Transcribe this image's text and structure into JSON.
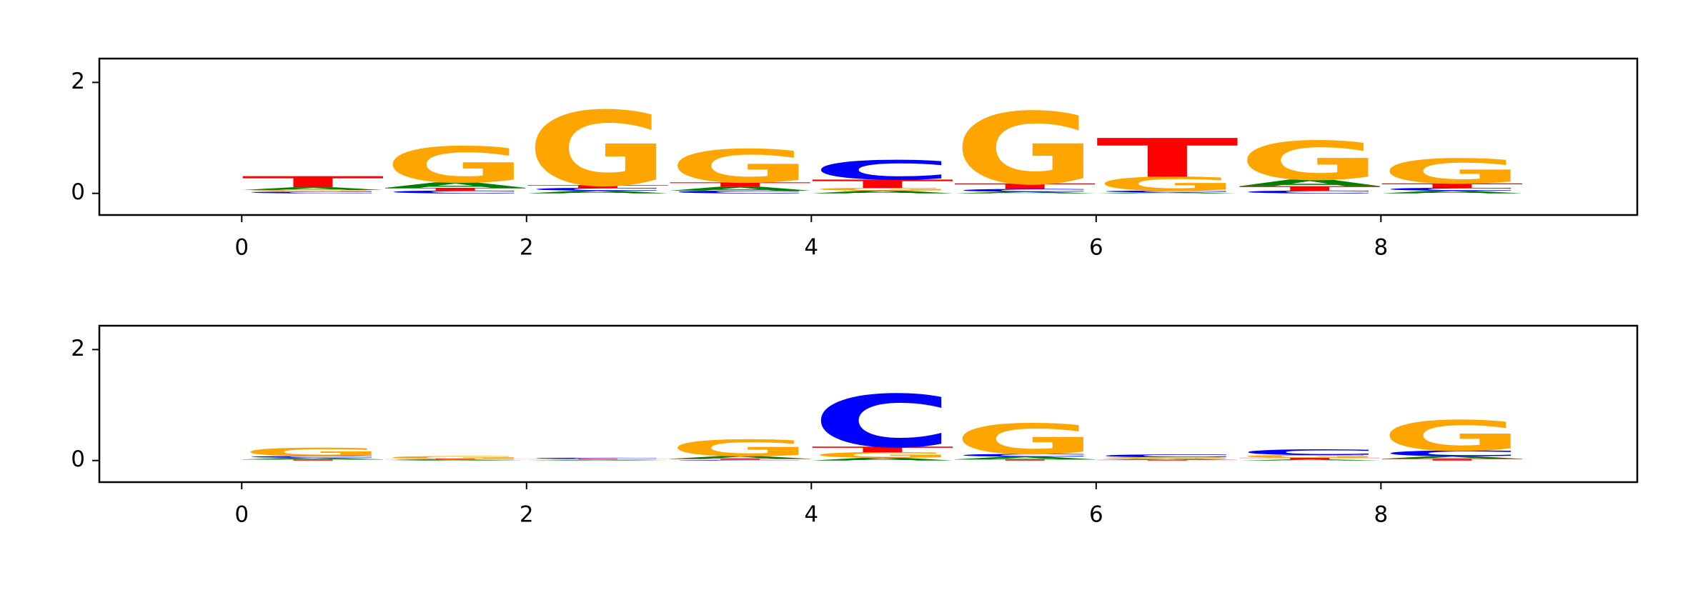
{
  "chart_data": [
    {
      "type": "logo",
      "xlim": [
        -1,
        9.8
      ],
      "ylim": [
        -0.39,
        2.43
      ],
      "xticks": [
        0,
        2,
        4,
        6,
        8
      ],
      "yticks": [
        0,
        2
      ],
      "series": [
        {
          "name": "A",
          "color": "#008000",
          "values": [
            0.05,
            0.1,
            0.05,
            0.07,
            0.05,
            0.03,
            0.02,
            0.12,
            0.05
          ]
        },
        {
          "name": "C",
          "color": "#0000ff",
          "values": [
            0.03,
            0.05,
            0.05,
            0.05,
            0.35,
            0.05,
            0.03,
            0.05,
            0.05
          ]
        },
        {
          "name": "G",
          "color": "#ffa500",
          "values": [
            0.03,
            0.65,
            1.35,
            0.6,
            0.05,
            1.3,
            0.25,
            0.7,
            0.45
          ]
        },
        {
          "name": "T",
          "color": "#ff0000",
          "values": [
            0.2,
            0.05,
            0.05,
            0.08,
            0.15,
            0.1,
            0.7,
            0.08,
            0.08
          ]
        }
      ]
    },
    {
      "type": "logo",
      "xlim": [
        -1,
        9.8
      ],
      "ylim": [
        -0.39,
        2.43
      ],
      "xticks": [
        0,
        2,
        4,
        6,
        8
      ],
      "yticks": [
        0,
        2
      ],
      "series": [
        {
          "name": "A",
          "color": "#008000",
          "values": [
            0.03,
            0.01,
            0.01,
            0.05,
            0.05,
            0.05,
            0.02,
            0.02,
            0.05
          ]
        },
        {
          "name": "C",
          "color": "#0000ff",
          "values": [
            0.03,
            0.01,
            0.02,
            0.01,
            0.95,
            0.05,
            0.05,
            0.1,
            0.1
          ]
        },
        {
          "name": "G",
          "color": "#ffa500",
          "values": [
            0.15,
            0.05,
            0.01,
            0.3,
            0.1,
            0.55,
            0.03,
            0.05,
            0.55
          ]
        },
        {
          "name": "T",
          "color": "#ff0000",
          "values": [
            0.02,
            0.01,
            0.01,
            0.02,
            0.1,
            0.02,
            0.01,
            0.03,
            0.03
          ]
        }
      ]
    }
  ]
}
